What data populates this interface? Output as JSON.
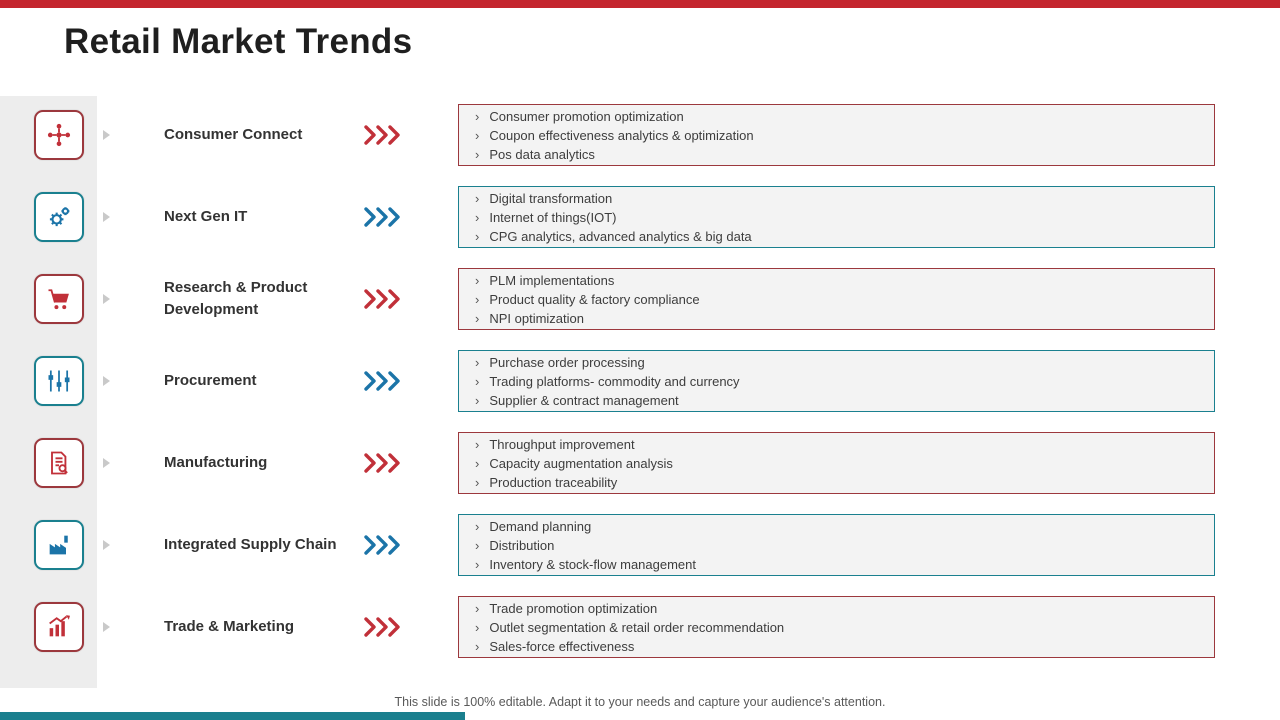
{
  "page": {
    "title": "Retail Market Trends",
    "footer": "This slide is 100% editable. Adapt it to your needs and capture your audience's attention."
  },
  "colors": {
    "top_bar": "#c4262e",
    "bottom_bar": "#1a7f8e",
    "red": "#c13039",
    "blue": "#1b74a8",
    "border_red": "#9c383d",
    "border_teal": "#1a808f",
    "box_bg": "#f3f3f3"
  },
  "rows": [
    {
      "label": "Consumer Connect",
      "theme": "red",
      "icon": "org-network-icon",
      "items": [
        "Consumer promotion optimization",
        "Coupon effectiveness analytics & optimization",
        "Pos data analytics"
      ]
    },
    {
      "label": "Next Gen IT",
      "theme": "blue",
      "icon": "gears-icon",
      "items": [
        "Digital transformation",
        "Internet of things(IOT)",
        "CPG analytics, advanced analytics & big data"
      ]
    },
    {
      "label": "Research & Product Development",
      "theme": "red",
      "icon": "shopping-cart-icon",
      "items": [
        "PLM implementations",
        "Product quality & factory compliance",
        "NPI optimization"
      ]
    },
    {
      "label": "Procurement",
      "theme": "blue",
      "icon": "flowchart-icon",
      "items": [
        "Purchase order processing",
        "Trading platforms- commodity and currency",
        "Supplier & contract management"
      ]
    },
    {
      "label": "Manufacturing",
      "theme": "red",
      "icon": "document-search-icon",
      "items": [
        "Throughput improvement",
        "Capacity augmentation analysis",
        "Production traceability"
      ]
    },
    {
      "label": "Integrated Supply Chain",
      "theme": "blue",
      "icon": "factory-icon",
      "items": [
        "Demand planning",
        "Distribution",
        "Inventory & stock-flow management"
      ]
    },
    {
      "label": "Trade & Marketing",
      "theme": "red",
      "icon": "growth-chart-icon",
      "items": [
        "Trade promotion optimization",
        "Outlet segmentation & retail order recommendation",
        "Sales-force effectiveness"
      ]
    }
  ]
}
